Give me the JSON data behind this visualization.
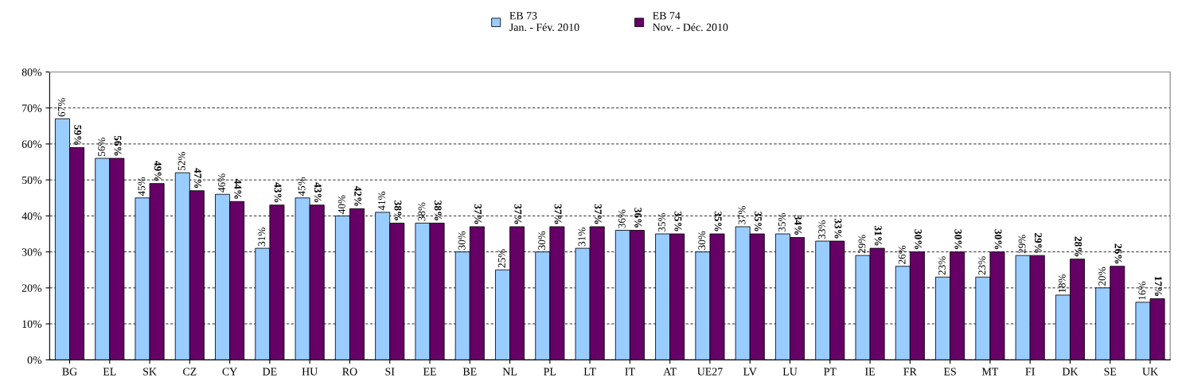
{
  "chart_data": {
    "type": "bar",
    "categories": [
      "BG",
      "EL",
      "SK",
      "CZ",
      "CY",
      "DE",
      "HU",
      "RO",
      "SI",
      "EE",
      "BE",
      "NL",
      "PL",
      "LT",
      "IT",
      "AT",
      "UE27",
      "LV",
      "LU",
      "PT",
      "IE",
      "FR",
      "ES",
      "MT",
      "FI",
      "DK",
      "SE",
      "UK"
    ],
    "series": [
      {
        "name": "EB 73\nJan. - Fév. 2010",
        "color": "#99ccff",
        "values": [
          67,
          56,
          45,
          52,
          46,
          31,
          45,
          40,
          41,
          38,
          30,
          25,
          30,
          31,
          36,
          35,
          30,
          37,
          35,
          33,
          29,
          26,
          23,
          23,
          29,
          18,
          20,
          16
        ],
        "value_labels": [
          "67%",
          "56%",
          "45%",
          "52%",
          "46%",
          "31%",
          "45%",
          "40%",
          "41%",
          "38%",
          "30%",
          "25%",
          "30%",
          "31%",
          "36%",
          "35%",
          "30%",
          "37%",
          "35%",
          "33%",
          "29%",
          "26%",
          "23%",
          "23%",
          "29%",
          "18%",
          "20%",
          "16%"
        ]
      },
      {
        "name": "EB 74\nNov. - Déc. 2010",
        "color": "#660066",
        "values": [
          59,
          56,
          49,
          47,
          44,
          43,
          43,
          42,
          38,
          38,
          37,
          37,
          37,
          37,
          36,
          35,
          35,
          35,
          34,
          33,
          31,
          30,
          30,
          30,
          29,
          28,
          26,
          17
        ],
        "value_labels": [
          "59%",
          "56%",
          "49%",
          "47%",
          "44%",
          "43%",
          "43%",
          "42%",
          "38%",
          "38%",
          "37%",
          "37%",
          "37%",
          "37%",
          "36%",
          "35%",
          "35%",
          "35%",
          "34%",
          "33%",
          "31%",
          "30%",
          "30%",
          "30%",
          "29%",
          "28%",
          "26%",
          "17%"
        ]
      }
    ],
    "ylim": [
      0,
      80
    ],
    "yticks": [
      {
        "value": 0,
        "label": "0%"
      },
      {
        "value": 10,
        "label": "10%"
      },
      {
        "value": 20,
        "label": "20%"
      },
      {
        "value": 30,
        "label": "30%"
      },
      {
        "value": 40,
        "label": "40%"
      },
      {
        "value": 50,
        "label": "50%"
      },
      {
        "value": 60,
        "label": "60%"
      },
      {
        "value": 70,
        "label": "70%"
      },
      {
        "value": 80,
        "label": "80%"
      }
    ],
    "grid": "y",
    "legend": "top"
  }
}
